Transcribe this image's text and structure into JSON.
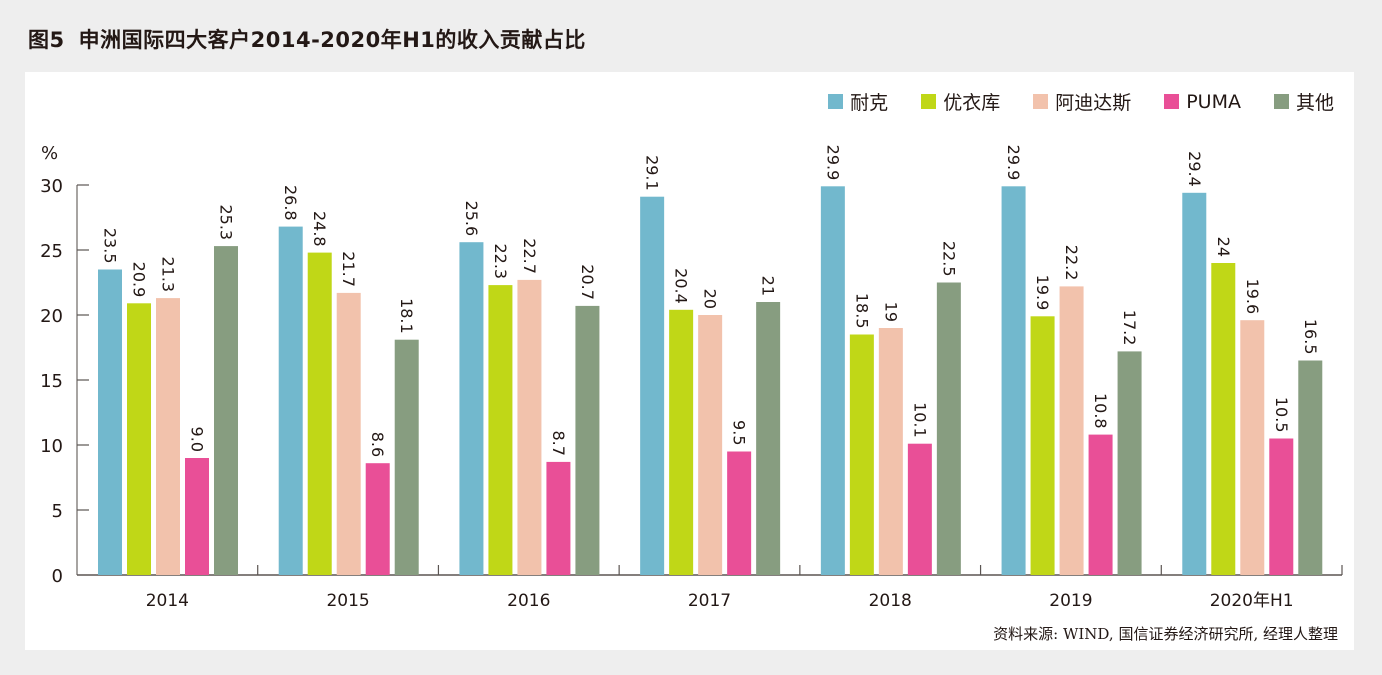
{
  "title": {
    "figure_no": "图5",
    "text": "申洲国际四大客户2014-2020年H1的收入贡献占比"
  },
  "source": "资料来源: WIND, 国信证券经济研究所, 经理人整理",
  "chart_data": {
    "type": "bar",
    "title": "申洲国际四大客户2014-2020年H1的收入贡献占比",
    "xlabel": "",
    "ylabel": "%",
    "ylim": [
      0,
      30
    ],
    "yticks": [
      0,
      5,
      10,
      15,
      20,
      25,
      30
    ],
    "grid": false,
    "legend_position": "top-right",
    "categories": [
      "2014",
      "2015",
      "2016",
      "2017",
      "2018",
      "2019",
      "2020年H1"
    ],
    "series": [
      {
        "name": "耐克",
        "color": "#72b8cd",
        "values": [
          23.5,
          26.8,
          25.6,
          29.1,
          29.9,
          29.9,
          29.4
        ],
        "labels": [
          "23.5",
          "26.8",
          "25.6",
          "29.1",
          "29.9",
          "29.9",
          "29.4"
        ]
      },
      {
        "name": "优衣库",
        "color": "#c0d717",
        "values": [
          20.9,
          24.8,
          22.3,
          20.4,
          18.5,
          19.9,
          24
        ],
        "labels": [
          "20.9",
          "24.8",
          "22.3",
          "20.4",
          "18.5",
          "19.9",
          "24"
        ]
      },
      {
        "name": "阿迪达斯",
        "color": "#f2c2ac",
        "values": [
          21.3,
          21.7,
          22.7,
          20,
          19,
          22.2,
          19.6
        ],
        "labels": [
          "21.3",
          "21.7",
          "22.7",
          "20",
          "19",
          "22.2",
          "19.6"
        ]
      },
      {
        "name": "PUMA",
        "color": "#e94f97",
        "values": [
          9.0,
          8.6,
          8.7,
          9.5,
          10.1,
          10.8,
          10.5
        ],
        "labels": [
          "9.0",
          "8.6",
          "8.7",
          "9.5",
          "10.1",
          "10.8",
          "10.5"
        ]
      },
      {
        "name": "其他",
        "color": "#879d80",
        "values": [
          25.3,
          18.1,
          20.7,
          21,
          22.5,
          17.2,
          16.5
        ],
        "labels": [
          "25.3",
          "18.1",
          "20.7",
          "21",
          "22.5",
          "17.2",
          "16.5"
        ]
      }
    ]
  }
}
